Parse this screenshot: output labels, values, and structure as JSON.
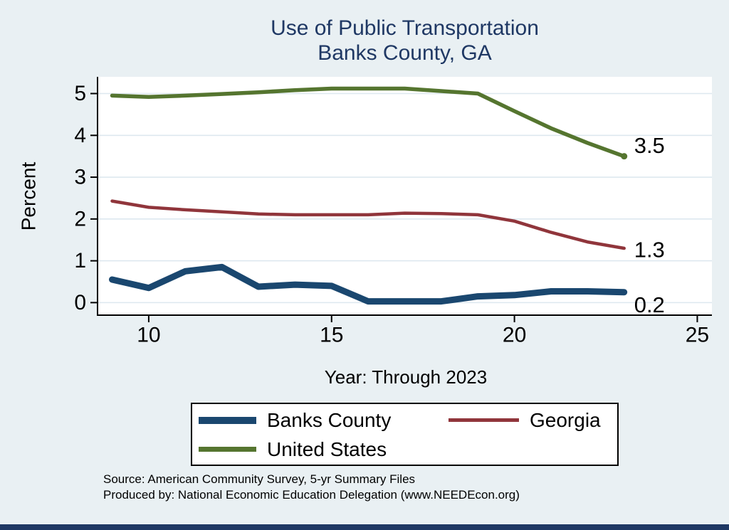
{
  "title": {
    "line1": "Use of Public Transportation",
    "line2": "Banks County, GA"
  },
  "axes": {
    "y_label": "Percent",
    "x_label": "Year: Through 2023"
  },
  "chart_data": {
    "type": "line",
    "title": "Use of Public Transportation",
    "subtitle": "Banks County, GA",
    "xlabel": "Year: Through 2023",
    "ylabel": "Percent",
    "x": [
      9,
      10,
      11,
      12,
      13,
      14,
      15,
      16,
      17,
      18,
      19,
      20,
      21,
      22,
      23
    ],
    "xticks": [
      10,
      15,
      20,
      25
    ],
    "yticks": [
      0,
      1,
      2,
      3,
      4,
      5
    ],
    "xlim": [
      8.6,
      25.4
    ],
    "ylim": [
      -0.3,
      5.4
    ],
    "grid": "horizontal",
    "legend_position": "bottom",
    "series": [
      {
        "name": "Banks County",
        "color": "#1a476f",
        "line_width": 9,
        "end_label": "0.2",
        "end_marker": false,
        "values": [
          0.55,
          0.35,
          0.75,
          0.85,
          0.38,
          0.43,
          0.4,
          0.03,
          0.03,
          0.03,
          0.15,
          0.18,
          0.27,
          0.27,
          0.25
        ]
      },
      {
        "name": "Georgia",
        "color": "#90353b",
        "line_width": 4.5,
        "end_label": "1.3",
        "end_marker": false,
        "values": [
          2.43,
          2.28,
          2.22,
          2.17,
          2.12,
          2.1,
          2.1,
          2.1,
          2.14,
          2.13,
          2.1,
          1.95,
          1.68,
          1.45,
          1.3
        ]
      },
      {
        "name": "United States",
        "color": "#55752f",
        "line_width": 5.5,
        "end_label": "3.5",
        "end_marker": true,
        "values": [
          4.95,
          4.92,
          4.95,
          4.99,
          5.03,
          5.08,
          5.12,
          5.12,
          5.12,
          5.06,
          5.0,
          4.58,
          4.17,
          3.82,
          3.5
        ]
      }
    ]
  },
  "footer": {
    "source_line1": "Source: American Community Survey, 5-yr Summary Files",
    "source_line2": "Produced by: National Economic Education Delegation (www.NEEDEcon.org)"
  },
  "colors": {
    "background": "#e9f0f3",
    "plot_background": "#ffffff",
    "grid_line": "#dde8ef",
    "axis_line": "#000000",
    "title_text": "#1f3864",
    "footer_bar": "#1f3864",
    "banks_county": "#1a476f",
    "georgia": "#90353b",
    "united_states": "#55752f"
  }
}
